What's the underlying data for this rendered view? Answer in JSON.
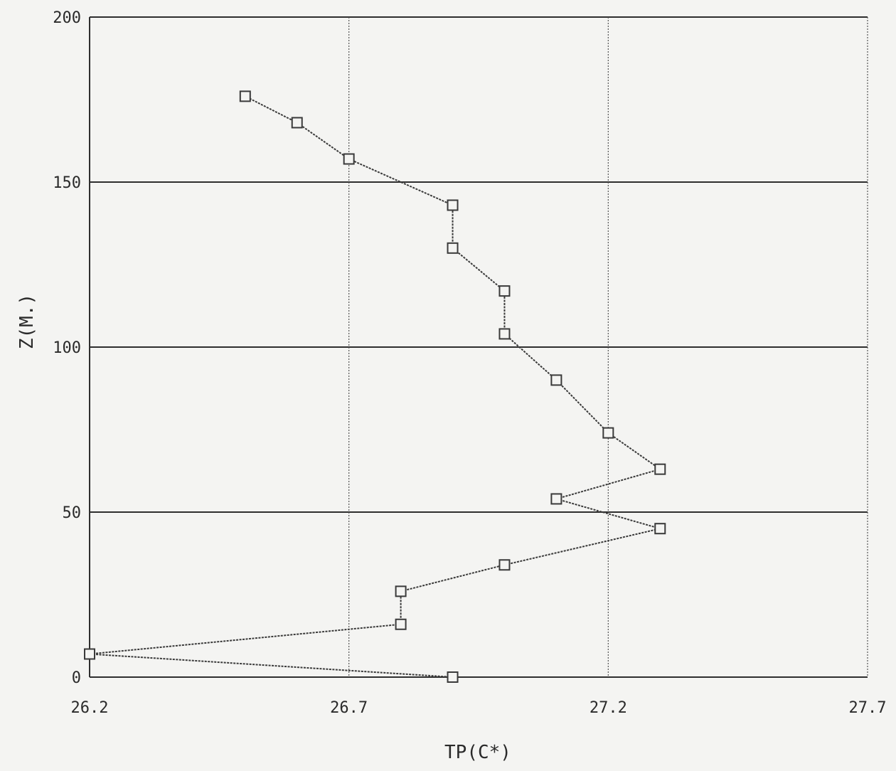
{
  "chart_data": {
    "type": "line",
    "title": "",
    "xlabel": "TP(C*)",
    "ylabel": "Z(M.)",
    "xlim": [
      26.2,
      27.7
    ],
    "ylim": [
      0,
      200
    ],
    "x_ticks": [
      "26.2",
      "26.7",
      "27.2",
      "27.7"
    ],
    "y_ticks": [
      "0",
      "50",
      "100",
      "150",
      "200"
    ],
    "grid": true,
    "legend": "none",
    "marker": "square",
    "line_color": "#3a3a3a",
    "series": [
      {
        "x": [
          26.9,
          26.2,
          26.8,
          26.8,
          27.0,
          27.3,
          27.1,
          27.3,
          27.2,
          27.1,
          27.0,
          27.0,
          26.9,
          26.9,
          26.7,
          26.6,
          26.5
        ],
        "y": [
          0,
          7,
          16,
          26,
          34,
          45,
          54,
          63,
          74,
          90,
          104,
          117,
          130,
          143,
          157,
          168,
          176
        ]
      }
    ]
  }
}
